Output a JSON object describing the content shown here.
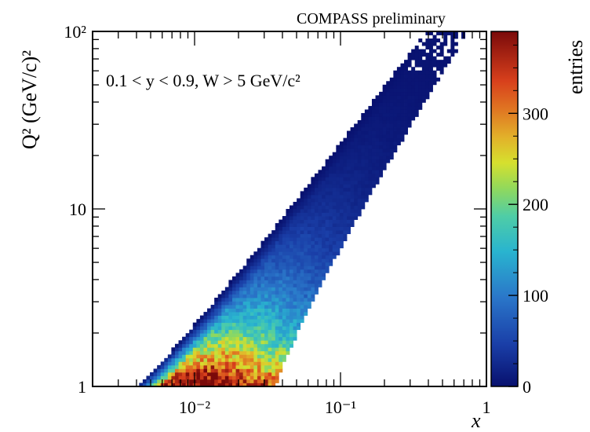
{
  "chart_data": {
    "type": "heatmap",
    "title": "",
    "top_label": "COMPASS preliminary",
    "annotation": "0.1 < y < 0.9, W > 5 GeV/c²",
    "xlabel": "x",
    "ylabel": "Q² (GeV/c)²",
    "x_scale": "log",
    "y_scale": "log",
    "xlim": [
      0.002,
      1
    ],
    "ylim": [
      1,
      100
    ],
    "x_ticks": [
      {
        "value": 0.01,
        "label": "10⁻²"
      },
      {
        "value": 0.1,
        "label": "10⁻¹"
      },
      {
        "value": 1,
        "label": "1"
      }
    ],
    "y_ticks": [
      {
        "value": 1,
        "label": "1"
      },
      {
        "value": 10,
        "label": "10"
      },
      {
        "value": 100,
        "label": "10²"
      }
    ],
    "colorbar": {
      "label": "entries",
      "range": [
        0,
        390
      ],
      "ticks": [
        {
          "value": 0,
          "label": "0"
        },
        {
          "value": 100,
          "label": "100"
        },
        {
          "value": 200,
          "label": "200"
        },
        {
          "value": 300,
          "label": "300"
        }
      ]
    },
    "density_peak": {
      "x": 0.025,
      "Q2": 1.1,
      "entries": 370
    },
    "band_bounds": {
      "x_min_at_Q2_1": 0.004,
      "x_max_at_Q2_1": 0.036,
      "x_min_at_Q2_100": 0.38,
      "x_max_at_Q2_100": 0.75
    },
    "grid": false,
    "colors": {
      "low": "#0b1f8a",
      "mid": "#2fbfc4",
      "high": "#c81818",
      "frame": "#000000"
    }
  }
}
